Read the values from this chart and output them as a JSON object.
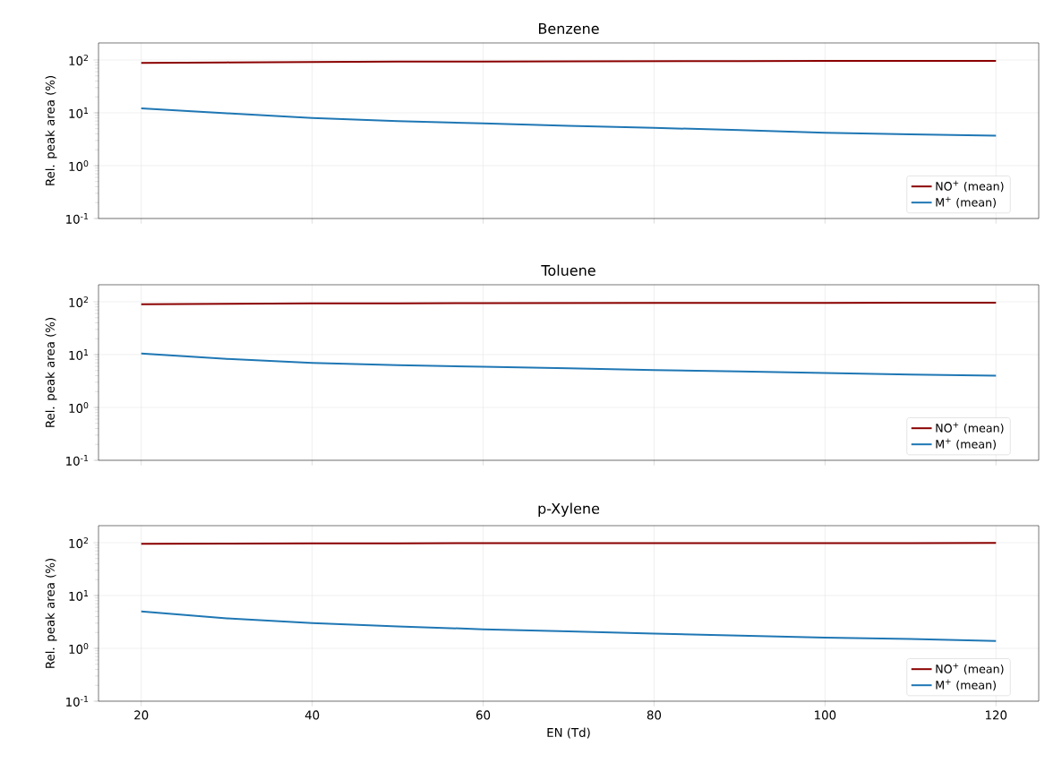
{
  "chart_data": [
    {
      "type": "line",
      "title": "Benzene",
      "ylabel": "Rel. peak area (%)",
      "x": [
        20,
        30,
        40,
        50,
        60,
        70,
        80,
        90,
        100,
        110,
        120
      ],
      "xlim": [
        15,
        125
      ],
      "xticks": [
        20,
        40,
        60,
        80,
        100,
        120
      ],
      "ylim": [
        0.1,
        210
      ],
      "yticks": [
        {
          "value": 0.1,
          "label": "10$^{-1}$"
        },
        {
          "value": 1,
          "label": "10$^{0}$"
        },
        {
          "value": 10,
          "label": "10$^{1}$"
        },
        {
          "value": 100,
          "label": "10$^{2}$"
        }
      ],
      "log": "y",
      "grid": true,
      "legend": "bottom right",
      "tick_labels": "y",
      "series": [
        {
          "name": "NO$^{+}$ (mean)",
          "color": "#8b0000",
          "values": [
            87.9,
            90.2,
            92,
            93,
            93.7,
            94.3,
            94.8,
            95.3,
            95.8,
            96.1,
            96.3
          ]
        },
        {
          "name": "M$^{+}$ (mean)",
          "color": "#1f77b4",
          "values": [
            12.1,
            9.8,
            8.0,
            7.0,
            6.3,
            5.7,
            5.2,
            4.7,
            4.2,
            3.9,
            3.7
          ]
        }
      ]
    },
    {
      "type": "line",
      "title": "Toluene",
      "ylabel": "Rel. peak area (%)",
      "x": [
        20,
        30,
        40,
        50,
        60,
        70,
        80,
        90,
        100,
        110,
        120
      ],
      "xlim": [
        15,
        125
      ],
      "xticks": [
        20,
        40,
        60,
        80,
        100,
        120
      ],
      "ylim": [
        0.1,
        210
      ],
      "yticks": [
        {
          "value": 0.1,
          "label": "10$^{-1}$"
        },
        {
          "value": 1,
          "label": "10$^{0}$"
        },
        {
          "value": 10,
          "label": "10$^{1}$"
        },
        {
          "value": 100,
          "label": "10$^{2}$"
        }
      ],
      "log": "y",
      "grid": true,
      "legend": "bottom right",
      "tick_labels": "y",
      "series": [
        {
          "name": "NO$^{+}$ (mean)",
          "color": "#8b0000",
          "values": [
            89.5,
            91.7,
            93,
            93.7,
            94.1,
            94.5,
            94.9,
            95.2,
            95.5,
            95.8,
            96
          ]
        },
        {
          "name": "M$^{+}$ (mean)",
          "color": "#1f77b4",
          "values": [
            10.5,
            8.3,
            7.0,
            6.3,
            5.9,
            5.5,
            5.1,
            4.8,
            4.5,
            4.2,
            4.0
          ]
        }
      ]
    },
    {
      "type": "line",
      "title": "p-Xylene",
      "xlabel": "EN (Td)",
      "ylabel": "Rel. peak area (%)",
      "x": [
        20,
        30,
        40,
        50,
        60,
        70,
        80,
        90,
        100,
        110,
        120
      ],
      "xlim": [
        15,
        125
      ],
      "xticks": [
        20,
        40,
        60,
        80,
        100,
        120
      ],
      "ylim": [
        0.1,
        210
      ],
      "yticks": [
        {
          "value": 0.1,
          "label": "10$^{-1}$"
        },
        {
          "value": 1,
          "label": "10$^{0}$"
        },
        {
          "value": 10,
          "label": "10$^{1}$"
        },
        {
          "value": 100,
          "label": "10$^{2}$"
        }
      ],
      "log": "y",
      "grid": true,
      "legend": "bottom right",
      "series": [
        {
          "name": "NO$^{+}$ (mean)",
          "color": "#8b0000",
          "values": [
            95,
            96.3,
            97,
            97.4,
            97.7,
            97.9,
            98.1,
            98.25,
            98.4,
            98.5,
            98.6
          ]
        },
        {
          "name": "M$^{+}$ (mean)",
          "color": "#1f77b4",
          "values": [
            5.0,
            3.7,
            3.0,
            2.6,
            2.3,
            2.1,
            1.9,
            1.75,
            1.6,
            1.5,
            1.38
          ]
        }
      ]
    }
  ]
}
